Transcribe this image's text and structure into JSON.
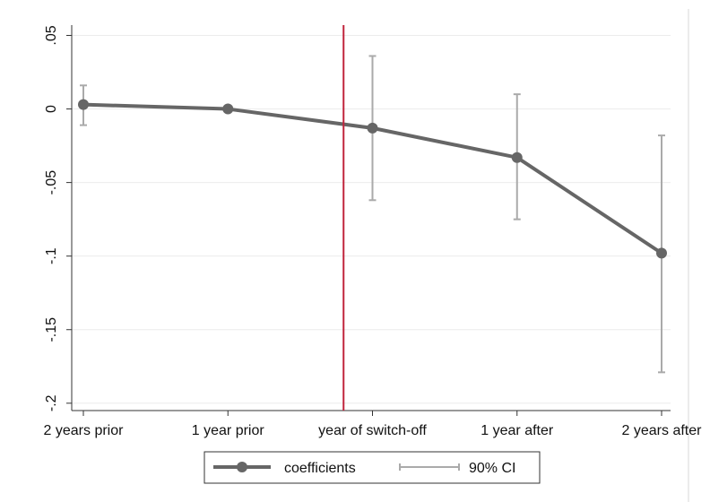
{
  "chart_data": {
    "type": "line",
    "categories": [
      "2 years prior",
      "1 year prior",
      "year of switch-off",
      "1 year after",
      "2 years after"
    ],
    "series": [
      {
        "name": "coefficients",
        "values": [
          0.003,
          0.0,
          -0.013,
          -0.033,
          -0.098
        ],
        "color": "#666666"
      }
    ],
    "ci": {
      "name": "90% CI",
      "lower": [
        -0.011,
        0.0,
        -0.062,
        -0.075,
        -0.179
      ],
      "upper": [
        0.016,
        0.0,
        0.036,
        0.01,
        -0.018
      ],
      "color": "#aaaaaa"
    },
    "y_ticks": [
      0.05,
      0,
      -0.05,
      -0.1,
      -0.15,
      -0.2
    ],
    "y_tick_labels": [
      ".05",
      "0",
      "-.05",
      "-.1",
      "-.15",
      "-.2"
    ],
    "ylim": [
      -0.205,
      0.057
    ],
    "vline": {
      "position_between": [
        "1 year prior",
        "year of switch-off"
      ],
      "fraction": 0.8,
      "color": "#c0243c"
    },
    "grid": true,
    "legend": {
      "placement": "bottom",
      "entries": [
        "coefficients",
        "90% CI"
      ]
    },
    "title": "",
    "xlabel": "",
    "ylabel": ""
  }
}
